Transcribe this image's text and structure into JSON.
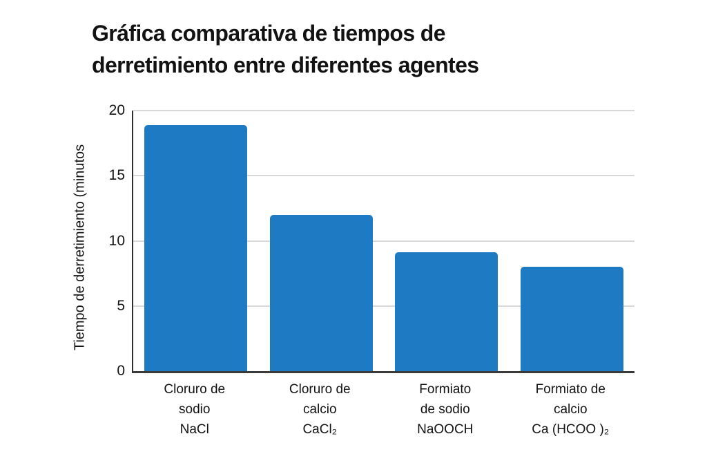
{
  "page": {
    "background_color": "#ffffff",
    "text_color": "#121212"
  },
  "chart": {
    "title_lines": [
      "Gráfica comparativa de tiempos de",
      "derretimiento entre diferentes agentes"
    ],
    "y_axis_label": "Tiempo de derretimiento (minutos",
    "bar_color": "#1e7ac2",
    "gridline_color": "#d8d8d8",
    "axis_color": "#2e2e2e"
  },
  "chart_data": {
    "type": "bar",
    "title": "Gráfica comparativa de tiempos de derretimiento entre diferentes agentes",
    "xlabel": "",
    "ylabel": "Tiempo de derretimiento (minutos",
    "categories": [
      "Cloruro de sodio NaCl",
      "Cloruro de calcio CaCl₂",
      "Formiato de sodio NaOOCH",
      "Formiato de calcio Ca (HCOO )₂"
    ],
    "category_label_lines": [
      [
        "Cloruro de",
        "sodio",
        "NaCl"
      ],
      [
        "Cloruro de",
        "calcio",
        "CaCl₂"
      ],
      [
        "Formiato",
        "de sodio",
        "NaOOCH"
      ],
      [
        "Formiato de",
        "calcio",
        "Ca (HCOO )₂"
      ]
    ],
    "values": [
      18.9,
      12,
      9.1,
      8
    ],
    "ylim": [
      0,
      20
    ],
    "yticks": [
      0,
      5,
      10,
      15,
      20
    ],
    "grid": true,
    "legend_position": "none",
    "bar_color": "#1e7ac2"
  }
}
